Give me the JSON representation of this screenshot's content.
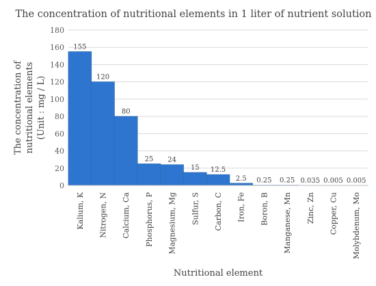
{
  "chart_data": {
    "type": "bar",
    "title": "The concentration of nutritional elements in 1 liter of nutrient solution",
    "xlabel": "Nutritional element",
    "ylabel_lines": [
      "The concentration of",
      "nutritional elements",
      "(Unit : mg / L)"
    ],
    "ylim": [
      0,
      180
    ],
    "yticks": [
      0,
      20,
      40,
      60,
      80,
      100,
      120,
      140,
      160,
      180
    ],
    "grid": true,
    "legend": "none",
    "categories": [
      "Kalium, K",
      "Nitrogen, N",
      "Calcium, Ca",
      "Phosphorus, P",
      "Magnesium, Mg",
      "Sulfur, S",
      "Carbon, C",
      "Iron, Fe",
      "Boron, B",
      "Manganese, Mn",
      "Zinc, Zn",
      "Copper, Cu",
      "Molybdenum, Mo"
    ],
    "values": [
      155,
      120,
      80,
      25,
      24,
      15,
      12.5,
      2.5,
      0.25,
      0.25,
      0.035,
      0.005,
      0.005
    ],
    "data_labels": [
      "155",
      "120",
      "80",
      "25",
      "24",
      "15",
      "12.5",
      "2.5",
      "0.25",
      "0.25",
      "0.035",
      "0.005",
      "0.005"
    ],
    "bar_color": "#2e75d0"
  }
}
